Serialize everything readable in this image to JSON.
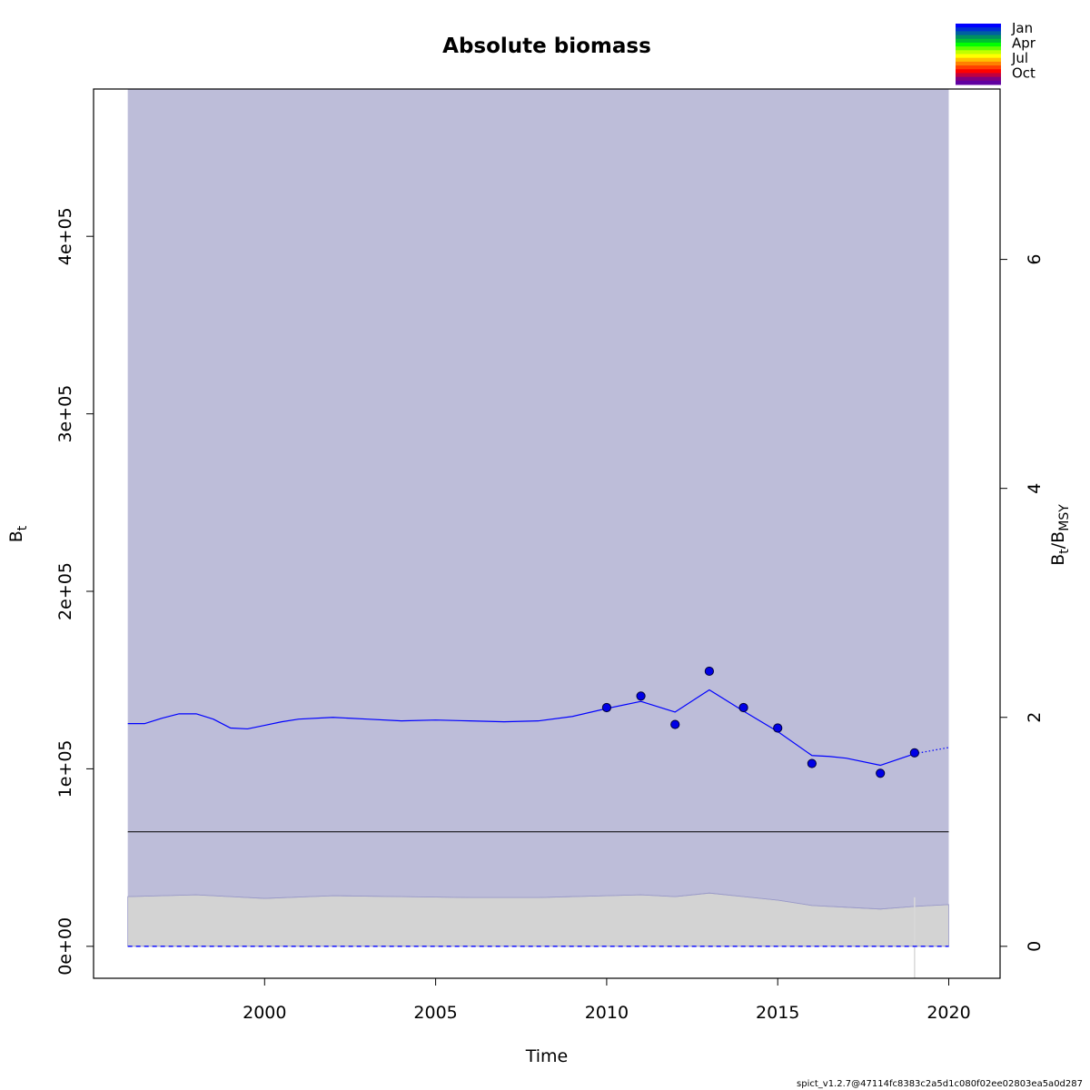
{
  "chart_data": {
    "type": "line",
    "title": "Absolute biomass",
    "xlabel": "Time",
    "ylabel_main": "B",
    "ylabel_sub": "t",
    "ylabel_right": {
      "b1": "B",
      "s1": "t",
      "slash": "/",
      "b2": "B",
      "s2": "MSY"
    },
    "xlim": [
      1995,
      2021.5
    ],
    "ylim": [
      -18000,
      483000
    ],
    "x_ticks": [
      2000,
      2005,
      2010,
      2015,
      2020
    ],
    "x_tick_labels": [
      "2000",
      "2005",
      "2010",
      "2015",
      "2020"
    ],
    "y_ticks": [
      0,
      100000,
      200000,
      300000,
      400000
    ],
    "y_tick_labels": [
      "0e+00",
      "1e+05",
      "2e+05",
      "3e+05",
      "4e+05"
    ],
    "right_axis_ticks": [
      0,
      2,
      4,
      6
    ],
    "right_axis_tick_labels": [
      "0",
      "2",
      "4",
      "6"
    ],
    "bmsy": 64500,
    "ci_band": {
      "x_start": 1996,
      "x_end": 2020,
      "lower": 0,
      "upper": 483000,
      "color": "#bdbdd9"
    },
    "lower_band": {
      "x": [
        1996,
        1997,
        1998,
        1999,
        2000,
        2002,
        2004,
        2006,
        2008,
        2010,
        2011,
        2012,
        2013,
        2014,
        2015,
        2016,
        2017,
        2018,
        2019,
        2020
      ],
      "y": [
        28000,
        28500,
        29000,
        28000,
        27000,
        28500,
        28000,
        27500,
        27500,
        28500,
        29000,
        28000,
        30000,
        28000,
        26000,
        23000,
        22000,
        21000,
        22500,
        23500
      ],
      "color": "#d3d3d3"
    },
    "series": [
      {
        "x": [
          1996,
          1996.5,
          1997,
          1997.5,
          1998,
          1998.5,
          1999,
          1999.5,
          2000,
          2000.5,
          2001,
          2002,
          2003,
          2004,
          2005,
          2006,
          2007,
          2008,
          2009,
          2010,
          2011,
          2012,
          2013,
          2014,
          2015,
          2016,
          2016.5,
          2017,
          2018,
          2019
        ],
        "values": [
          125500,
          125500,
          128500,
          131000,
          131000,
          128000,
          123000,
          122500,
          124500,
          126500,
          128000,
          129000,
          128000,
          127000,
          127500,
          127000,
          126500,
          127000,
          129500,
          134000,
          138000,
          132000,
          144500,
          132500,
          121000,
          107500,
          107000,
          106000,
          102000,
          108500
        ],
        "color": "#0000ff"
      },
      {
        "x": [
          2019,
          2020
        ],
        "values": [
          108500,
          112000
        ],
        "color": "#0000ff",
        "style": "dotted"
      }
    ],
    "observations": {
      "x": [
        2010,
        2011,
        2012,
        2013,
        2014,
        2015,
        2016,
        2018,
        2019
      ],
      "values": [
        134500,
        141000,
        125000,
        155000,
        134500,
        123000,
        103000,
        97500,
        109000
      ],
      "color": "#0000e6"
    },
    "zero_line_color": "#0000ff",
    "vertical_marker_x": 2019,
    "legend": {
      "labels": [
        "Jan",
        "Apr",
        "Jul",
        "Oct"
      ],
      "colors": [
        "#0000ff",
        "#0030d0",
        "#0060a0",
        "#009060",
        "#00c030",
        "#00ff00",
        "#60ff00",
        "#c0ff00",
        "#ffff00",
        "#ffc000",
        "#ff8000",
        "#ff4000",
        "#ff0000",
        "#c00040",
        "#800080",
        "#6000a0"
      ]
    }
  },
  "footer_text": "spict_v1.2.7@47114fc8383c2a5d1c080f02ee02803ea5a0d287"
}
